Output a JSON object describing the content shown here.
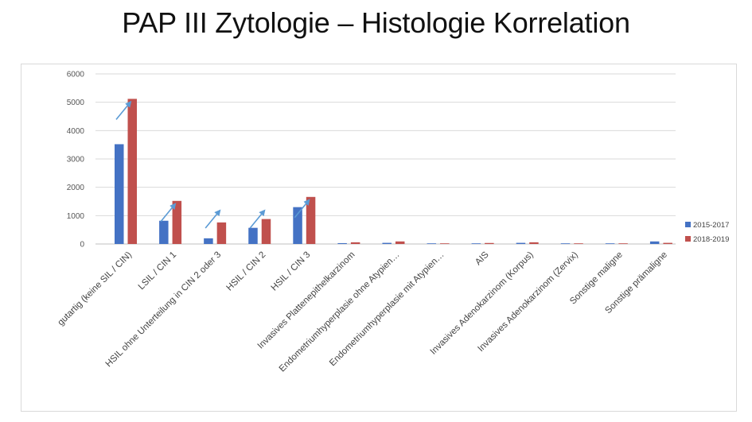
{
  "slide": {
    "title": "PAP III Zytologie – Histologie Korrelation"
  },
  "chart_data": {
    "type": "bar",
    "title": "",
    "xlabel": "",
    "ylabel": "",
    "ylim": [
      0,
      6000
    ],
    "yticks": [
      0,
      1000,
      2000,
      3000,
      4000,
      5000,
      6000
    ],
    "grid": true,
    "legend_position": "right",
    "categories": [
      "gutartig (keine SIL / CIN)",
      "LSIL / CIN 1",
      "HSIL ohne Unterteilung in CIN 2 oder 3",
      "HSIL / CIN 2",
      "HSIL / CIN 3",
      "Invasives Plattenepithelkarzinom",
      "Endometriumhyperplasie ohne Atypien…",
      "Endometriumhyperplasie mit Atypien…",
      "AIS",
      "Invasives Adenokarzinom (Korpus)",
      "Invasives Adenokarzinom (Zervix)",
      "Sonstige maligne",
      "Sonstige prämaligne"
    ],
    "series": [
      {
        "name": "2015-2017",
        "color": "#4472c4",
        "values": [
          3520,
          820,
          200,
          570,
          1300,
          30,
          40,
          10,
          15,
          40,
          10,
          10,
          90
        ]
      },
      {
        "name": "2018-2019",
        "color": "#c0504d",
        "values": [
          5120,
          1520,
          760,
          880,
          1660,
          60,
          90,
          15,
          35,
          60,
          15,
          15,
          40
        ]
      }
    ],
    "annotations": {
      "type": "arrow",
      "color": "#5b9bd5",
      "categories": [
        0,
        1,
        2,
        3,
        4
      ]
    }
  }
}
